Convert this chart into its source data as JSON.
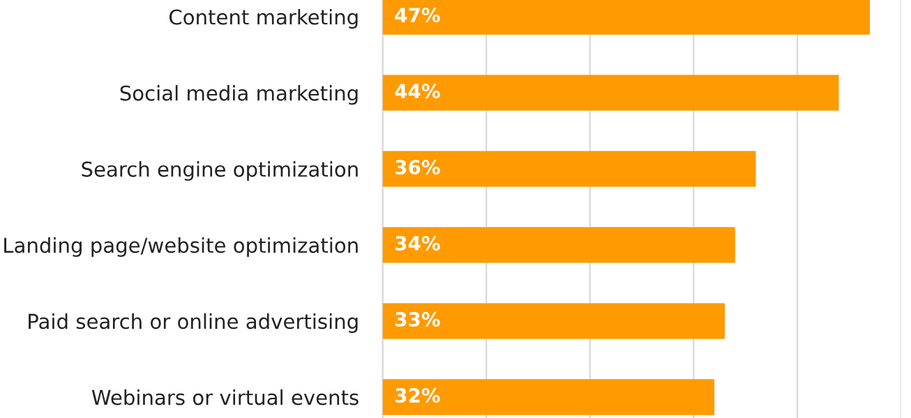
{
  "chart_data": {
    "type": "bar",
    "orientation": "horizontal",
    "categories": [
      "Content marketing",
      "Social media marketing",
      "Search engine optimization",
      "Landing page/website optimization",
      "Paid search or online advertising",
      "Webinars or virtual events"
    ],
    "values": [
      47,
      44,
      36,
      34,
      33,
      32
    ],
    "value_labels": [
      "47%",
      "44%",
      "36%",
      "34%",
      "33%",
      "32%"
    ],
    "color": "#ff9a00",
    "xlim": [
      0,
      50
    ],
    "xticks": [
      {
        "value": 0,
        "label": null
      },
      {
        "value": 10,
        "label": null
      },
      {
        "value": 20,
        "label": null
      },
      {
        "value": 30,
        "label": null
      },
      {
        "value": 40,
        "label": null
      },
      {
        "value": 50,
        "label": null
      }
    ],
    "grid": "x",
    "tick_labels": "y"
  }
}
